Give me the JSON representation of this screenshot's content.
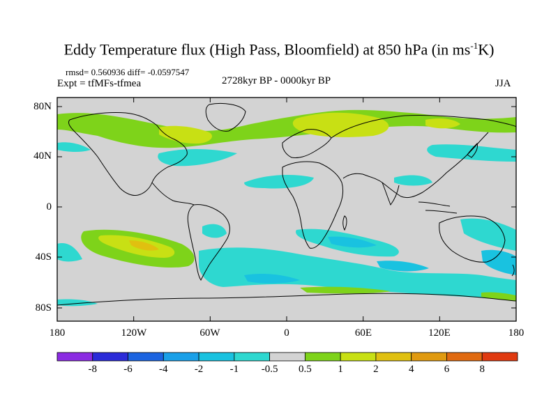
{
  "title": {
    "main": "Eddy Temperature flux (High Pass, Bloomfield) at 850 hPa (in ms",
    "sup": "-1",
    "tail": "K)"
  },
  "stats": "rmsd= 0.560936 diff= -0.0597547",
  "experiment": "Expt = tfMFs-tfmea",
  "period": "2728kyr BP - 0000kyr BP",
  "season": "JJA",
  "map": {
    "ocean_color": "#d3d3d3",
    "lat_ticks": [
      "80N",
      "40N",
      "0",
      "40S",
      "80S"
    ],
    "lon_ticks": [
      "180",
      "120W",
      "60W",
      "0",
      "60E",
      "120E",
      "180"
    ]
  },
  "colorbar": {
    "colors": [
      "#8b2be2",
      "#2b2bd8",
      "#1c64e0",
      "#1aa0e8",
      "#19c2e0",
      "#2ed8d0",
      "#d3d3d3",
      "#7ed31a",
      "#c8e014",
      "#e0c010",
      "#e09a10",
      "#e06a10",
      "#e03a10"
    ],
    "labels": [
      "-8",
      "-6",
      "-4",
      "-2",
      "-1",
      "-0.5",
      "0.5",
      "1",
      "2",
      "4",
      "6",
      "8"
    ]
  }
}
